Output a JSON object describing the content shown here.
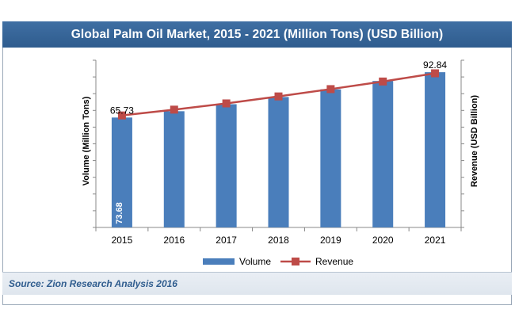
{
  "chart_data": {
    "type": "bar",
    "title": "Global Palm Oil Market, 2015 - 2021 (Million Tons) (USD Billion)",
    "categories": [
      "2015",
      "2016",
      "2017",
      "2018",
      "2019",
      "2020",
      "2021"
    ],
    "ylabel": "Volume (Million Tons)",
    "y2label": "Revenue (USD Billion)",
    "series": [
      {
        "name": "Volume",
        "type": "bar",
        "color": "#4a7ebb",
        "values": [
          65.73,
          69.5,
          73.7,
          78.0,
          82.6,
          87.6,
          92.84
        ]
      },
      {
        "name": "Revenue",
        "type": "line",
        "color": "#be4b48",
        "values": [
          73.68,
          77.5,
          81.6,
          86.2,
          91.0,
          96.0,
          101.4
        ]
      }
    ],
    "data_labels": [
      {
        "series": "Volume",
        "index": 0,
        "text": "65.73"
      },
      {
        "series": "Volume",
        "index": 6,
        "text": "92.84"
      },
      {
        "series": "Revenue",
        "index": 0,
        "text": "73.68"
      }
    ],
    "ylim": [
      0,
      100
    ],
    "y2lim": [
      0,
      110
    ],
    "legend": "bottom",
    "grid": false
  },
  "source": "Source: Zion Research Analysis 2016"
}
